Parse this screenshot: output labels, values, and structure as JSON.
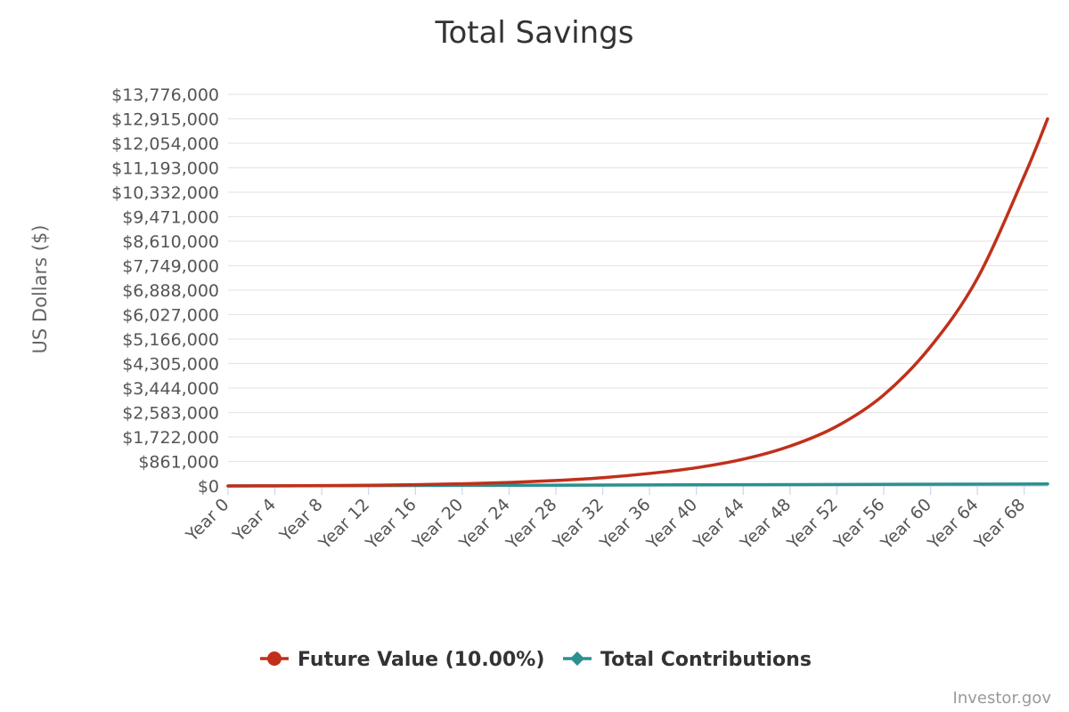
{
  "chart_data": {
    "type": "line",
    "title": "Total Savings",
    "ylabel": "US Dollars ($)",
    "xlabel": "",
    "ylim": [
      0,
      13776000
    ],
    "yticks": [
      0,
      861000,
      1722000,
      2583000,
      3444000,
      4305000,
      5166000,
      6027000,
      6888000,
      7749000,
      8610000,
      9471000,
      10332000,
      11193000,
      12054000,
      12915000,
      13776000
    ],
    "ytick_labels": [
      "$0",
      "$861,000",
      "$1,722,000",
      "$2,583,000",
      "$3,444,000",
      "$4,305,000",
      "$5,166,000",
      "$6,027,000",
      "$6,888,000",
      "$7,749,000",
      "$8,610,000",
      "$9,471,000",
      "$10,332,000",
      "$11,193,000",
      "$12,054,000",
      "$12,915,000",
      "$13,776,000"
    ],
    "x_range": [
      0,
      70
    ],
    "xticks": [
      0,
      4,
      8,
      12,
      16,
      20,
      24,
      28,
      32,
      36,
      40,
      44,
      48,
      52,
      56,
      60,
      64,
      68
    ],
    "xtick_labels": [
      "Year 0",
      "Year 4",
      "Year 8",
      "Year 12",
      "Year 16",
      "Year 20",
      "Year 24",
      "Year 28",
      "Year 32",
      "Year 36",
      "Year 40",
      "Year 44",
      "Year 48",
      "Year 52",
      "Year 56",
      "Year 60",
      "Year 64",
      "Year 68"
    ],
    "legend_position": "bottom-center",
    "grid": true,
    "series": [
      {
        "name": "Future Value (10.00%)",
        "color": "#c0301b",
        "marker": "circle",
        "x": [
          0,
          4,
          8,
          12,
          16,
          20,
          24,
          28,
          32,
          36,
          40,
          44,
          48,
          52,
          56,
          60,
          64,
          68,
          70
        ],
        "values": [
          0,
          4600,
          12000,
          25000,
          45000,
          75000,
          120000,
          190000,
          290000,
          440000,
          640000,
          940000,
          1400000,
          2100000,
          3200000,
          4900000,
          7300000,
          10900000,
          12915000
        ]
      },
      {
        "name": "Total Contributions",
        "color": "#2a9090",
        "marker": "diamond",
        "x": [
          0,
          70
        ],
        "values": [
          0,
          70000
        ]
      }
    ]
  },
  "credit": "Investor.gov"
}
